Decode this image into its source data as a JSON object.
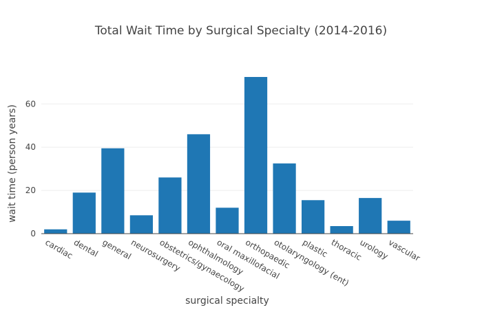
{
  "chart_data": {
    "type": "bar",
    "title": "Total Wait Time by Surgical Specialty (2014-2016)",
    "xlabel": "surgical specialty",
    "ylabel": "wait time (person years)",
    "categories": [
      "cardiac",
      "dental",
      "general",
      "neurosurgery",
      "obstetrics/gynaecology",
      "ophthalmology",
      "oral maxillofacial",
      "orthopaedic",
      "otolaryngology (ent)",
      "plastic",
      "thoracic",
      "urology",
      "vascular"
    ],
    "values": [
      2,
      19,
      39.5,
      8.5,
      26,
      46,
      12,
      72.5,
      32.5,
      15.5,
      3.5,
      16.5,
      6
    ],
    "ylim": [
      0,
      72.5
    ],
    "yticks": [
      0,
      20,
      40,
      60
    ],
    "grid": true,
    "legend": "none",
    "bar_color": "#1f77b4",
    "grid_color": "#eeeeee",
    "axis_color": "#444444"
  }
}
